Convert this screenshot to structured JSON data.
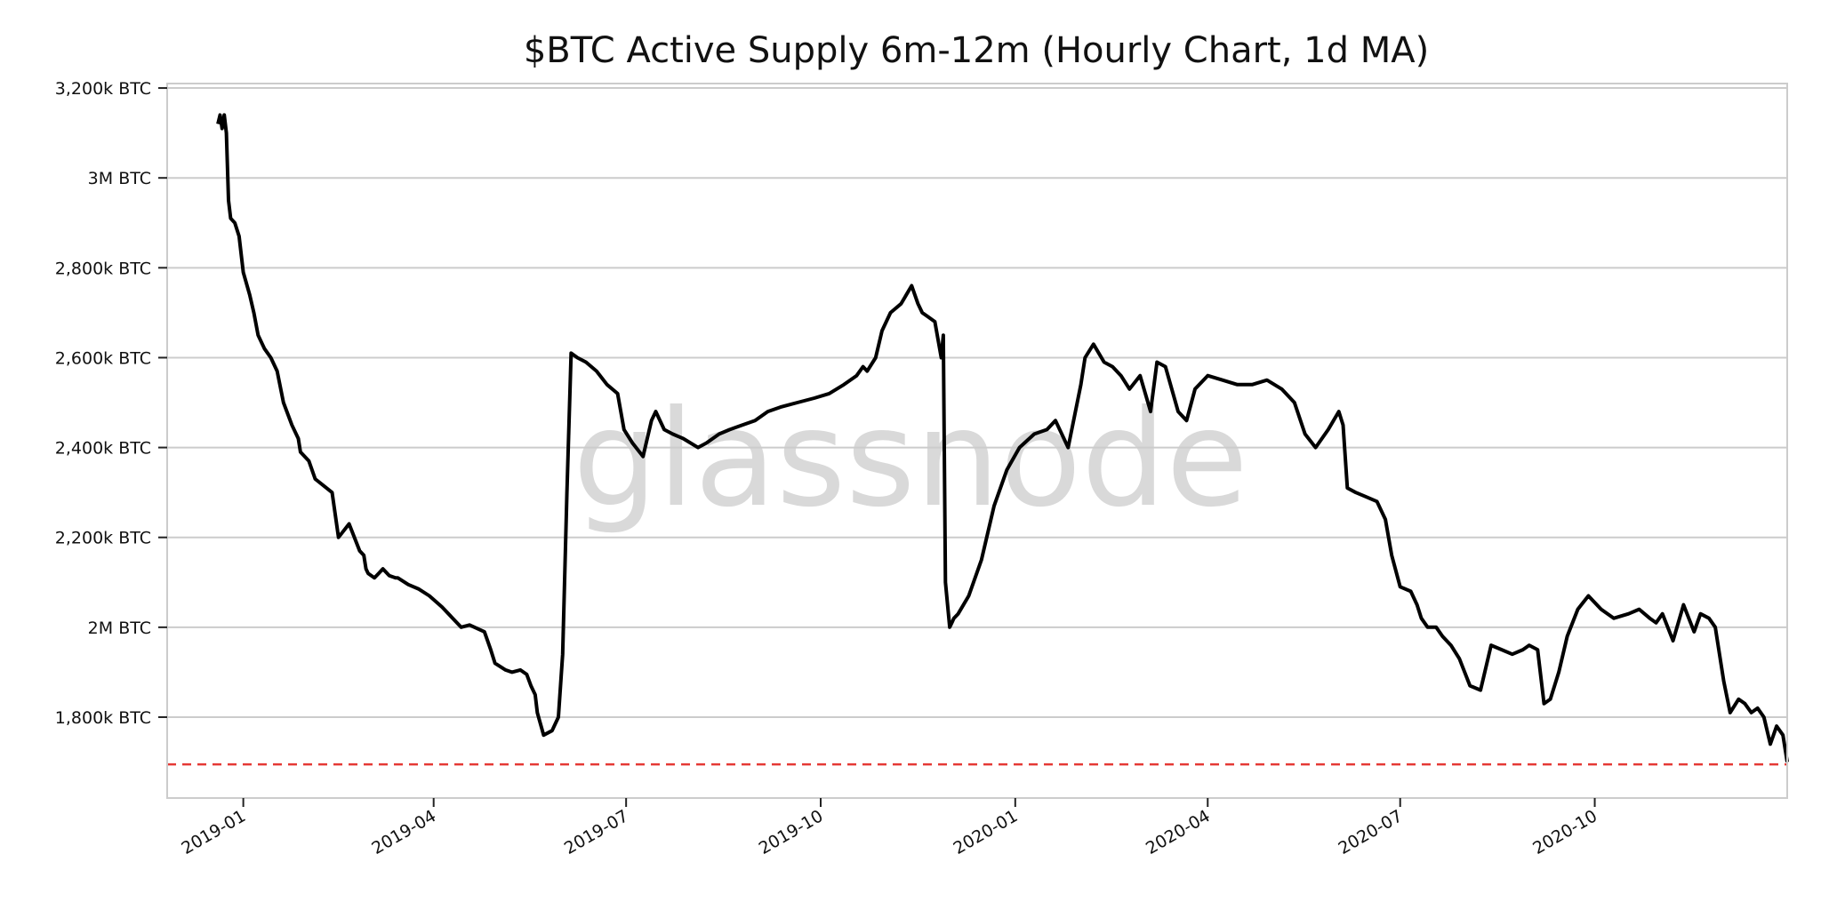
{
  "watermark": "glassnode",
  "colors": {
    "line": "#000000",
    "reference_line": "#e53935",
    "grid": "#cccccc",
    "frame": "#cccccc",
    "watermark": "#d9d9d9"
  },
  "chart_data": {
    "type": "line",
    "title": "$BTC Active Supply 6m-12m (Hourly Chart, 1d MA)",
    "xlabel": "",
    "ylabel": "",
    "x_range": [
      "2018-11-26",
      "2020-12-31"
    ],
    "ylim": [
      1620000,
      3210000
    ],
    "grid": "horizontal",
    "y_ticks": [
      {
        "value": 1800000,
        "label": "1,800k BTC"
      },
      {
        "value": 2000000,
        "label": "2M BTC"
      },
      {
        "value": 2200000,
        "label": "2,200k BTC"
      },
      {
        "value": 2400000,
        "label": "2,400k BTC"
      },
      {
        "value": 2600000,
        "label": "2,600k BTC"
      },
      {
        "value": 2800000,
        "label": "2,800k BTC"
      },
      {
        "value": 3000000,
        "label": "3M BTC"
      },
      {
        "value": 3200000,
        "label": "3,200k BTC"
      }
    ],
    "x_ticks": [
      {
        "value": "2019-01-01",
        "label": "2019-01"
      },
      {
        "value": "2019-04-01",
        "label": "2019-04"
      },
      {
        "value": "2019-07-01",
        "label": "2019-07"
      },
      {
        "value": "2019-10-01",
        "label": "2019-10"
      },
      {
        "value": "2020-01-01",
        "label": "2020-01"
      },
      {
        "value": "2020-04-01",
        "label": "2020-04"
      },
      {
        "value": "2020-07-01",
        "label": "2020-07"
      },
      {
        "value": "2020-10-01",
        "label": "2020-10"
      }
    ],
    "reference_line": {
      "value": 1695000,
      "style": "dashed"
    },
    "series": [
      {
        "x": [
          "2018-12-20",
          "2018-12-21",
          "2018-12-22",
          "2018-12-23",
          "2018-12-24",
          "2018-12-25",
          "2018-12-26",
          "2018-12-28",
          "2018-12-30",
          "2019-01-01",
          "2019-01-04",
          "2019-01-06",
          "2019-01-08",
          "2019-01-11",
          "2019-01-14",
          "2019-01-17",
          "2019-01-20",
          "2019-01-24",
          "2019-01-27",
          "2019-01-28",
          "2019-02-01",
          "2019-02-04",
          "2019-02-08",
          "2019-02-12",
          "2019-02-15",
          "2019-02-20",
          "2019-02-25",
          "2019-02-27",
          "2019-02-28",
          "2019-03-01",
          "2019-03-04",
          "2019-03-06",
          "2019-03-08",
          "2019-03-11",
          "2019-03-14",
          "2019-03-15",
          "2019-03-20",
          "2019-03-25",
          "2019-03-30",
          "2019-04-05",
          "2019-04-10",
          "2019-04-14",
          "2019-04-18",
          "2019-04-25",
          "2019-04-28",
          "2019-04-30",
          "2019-05-05",
          "2019-05-08",
          "2019-05-12",
          "2019-05-15",
          "2019-05-17",
          "2019-05-19",
          "2019-05-20",
          "2019-05-23",
          "2019-05-27",
          "2019-05-30",
          "2019-06-01",
          "2019-06-03",
          "2019-06-05",
          "2019-06-08",
          "2019-06-12",
          "2019-06-17",
          "2019-06-22",
          "2019-06-27",
          "2019-06-30",
          "2019-07-04",
          "2019-07-09",
          "2019-07-13",
          "2019-07-15",
          "2019-07-19",
          "2019-07-23",
          "2019-07-28",
          "2019-08-04",
          "2019-08-08",
          "2019-08-14",
          "2019-08-19",
          "2019-08-25",
          "2019-08-31",
          "2019-09-06",
          "2019-09-12",
          "2019-09-20",
          "2019-09-28",
          "2019-10-05",
          "2019-10-12",
          "2019-10-18",
          "2019-10-21",
          "2019-10-23",
          "2019-10-27",
          "2019-10-30",
          "2019-11-03",
          "2019-11-08",
          "2019-11-13",
          "2019-11-16",
          "2019-11-18",
          "2019-11-21",
          "2019-11-24",
          "2019-11-27",
          "2019-11-28",
          "2019-11-29",
          "2019-12-01",
          "2019-12-02",
          "2019-12-03",
          "2019-12-05",
          "2019-12-10",
          "2019-12-16",
          "2019-12-22",
          "2019-12-28",
          "2020-01-03",
          "2020-01-10",
          "2020-01-16",
          "2020-01-20",
          "2020-01-26",
          "2020-02-01",
          "2020-02-03",
          "2020-02-07",
          "2020-02-12",
          "2020-02-16",
          "2020-02-20",
          "2020-02-24",
          "2020-02-29",
          "2020-03-05",
          "2020-03-08",
          "2020-03-12",
          "2020-03-18",
          "2020-03-22",
          "2020-03-26",
          "2020-04-01",
          "2020-04-08",
          "2020-04-15",
          "2020-04-22",
          "2020-04-29",
          "2020-05-06",
          "2020-05-12",
          "2020-05-17",
          "2020-05-22",
          "2020-05-28",
          "2020-06-02",
          "2020-06-04",
          "2020-06-06",
          "2020-06-10",
          "2020-06-15",
          "2020-06-20",
          "2020-06-24",
          "2020-06-27",
          "2020-07-01",
          "2020-07-06",
          "2020-07-09",
          "2020-07-11",
          "2020-07-14",
          "2020-07-18",
          "2020-07-21",
          "2020-07-25",
          "2020-07-29",
          "2020-08-03",
          "2020-08-08",
          "2020-08-13",
          "2020-08-18",
          "2020-08-23",
          "2020-08-28",
          "2020-08-31",
          "2020-09-04",
          "2020-09-07",
          "2020-09-10",
          "2020-09-14",
          "2020-09-18",
          "2020-09-23",
          "2020-09-28",
          "2020-10-04",
          "2020-10-10",
          "2020-10-17",
          "2020-10-22",
          "2020-10-27",
          "2020-10-30",
          "2020-11-02",
          "2020-11-07",
          "2020-11-12",
          "2020-11-17",
          "2020-11-20",
          "2020-11-24",
          "2020-11-27",
          "2020-12-01",
          "2020-12-04",
          "2020-12-08",
          "2020-12-11",
          "2020-12-14",
          "2020-12-17",
          "2020-12-20",
          "2020-12-23",
          "2020-12-26",
          "2020-12-29",
          "2020-12-31"
        ],
        "values": [
          3120000,
          3140000,
          3110000,
          3140000,
          3100000,
          2950000,
          2910000,
          2900000,
          2870000,
          2790000,
          2740000,
          2700000,
          2650000,
          2620000,
          2600000,
          2570000,
          2500000,
          2450000,
          2420000,
          2390000,
          2370000,
          2330000,
          2315000,
          2300000,
          2200000,
          2230000,
          2170000,
          2160000,
          2130000,
          2120000,
          2110000,
          2120000,
          2130000,
          2115000,
          2110000,
          2110000,
          2095000,
          2085000,
          2070000,
          2045000,
          2020000,
          2000000,
          2005000,
          1990000,
          1950000,
          1920000,
          1905000,
          1900000,
          1905000,
          1895000,
          1870000,
          1850000,
          1810000,
          1760000,
          1770000,
          1800000,
          1940000,
          2300000,
          2610000,
          2600000,
          2590000,
          2570000,
          2540000,
          2520000,
          2440000,
          2410000,
          2380000,
          2460000,
          2480000,
          2440000,
          2430000,
          2420000,
          2400000,
          2410000,
          2430000,
          2440000,
          2450000,
          2460000,
          2480000,
          2490000,
          2500000,
          2510000,
          2520000,
          2540000,
          2560000,
          2580000,
          2570000,
          2600000,
          2660000,
          2700000,
          2720000,
          2760000,
          2720000,
          2700000,
          2690000,
          2680000,
          2600000,
          2650000,
          2100000,
          2000000,
          2010000,
          2020000,
          2030000,
          2070000,
          2150000,
          2270000,
          2350000,
          2400000,
          2430000,
          2440000,
          2460000,
          2400000,
          2540000,
          2600000,
          2630000,
          2590000,
          2580000,
          2560000,
          2530000,
          2560000,
          2480000,
          2590000,
          2580000,
          2480000,
          2460000,
          2530000,
          2560000,
          2550000,
          2540000,
          2540000,
          2550000,
          2530000,
          2500000,
          2430000,
          2400000,
          2440000,
          2480000,
          2450000,
          2310000,
          2300000,
          2290000,
          2280000,
          2240000,
          2160000,
          2090000,
          2080000,
          2050000,
          2020000,
          2000000,
          2000000,
          1980000,
          1960000,
          1930000,
          1870000,
          1860000,
          1960000,
          1950000,
          1940000,
          1950000,
          1960000,
          1950000,
          1830000,
          1840000,
          1900000,
          1980000,
          2040000,
          2070000,
          2040000,
          2020000,
          2030000,
          2040000,
          2020000,
          2010000,
          2030000,
          1970000,
          2050000,
          1990000,
          2030000,
          2020000,
          2000000,
          1880000,
          1810000,
          1840000,
          1830000,
          1810000,
          1820000,
          1800000,
          1740000,
          1780000,
          1760000,
          1700000
        ]
      }
    ]
  }
}
